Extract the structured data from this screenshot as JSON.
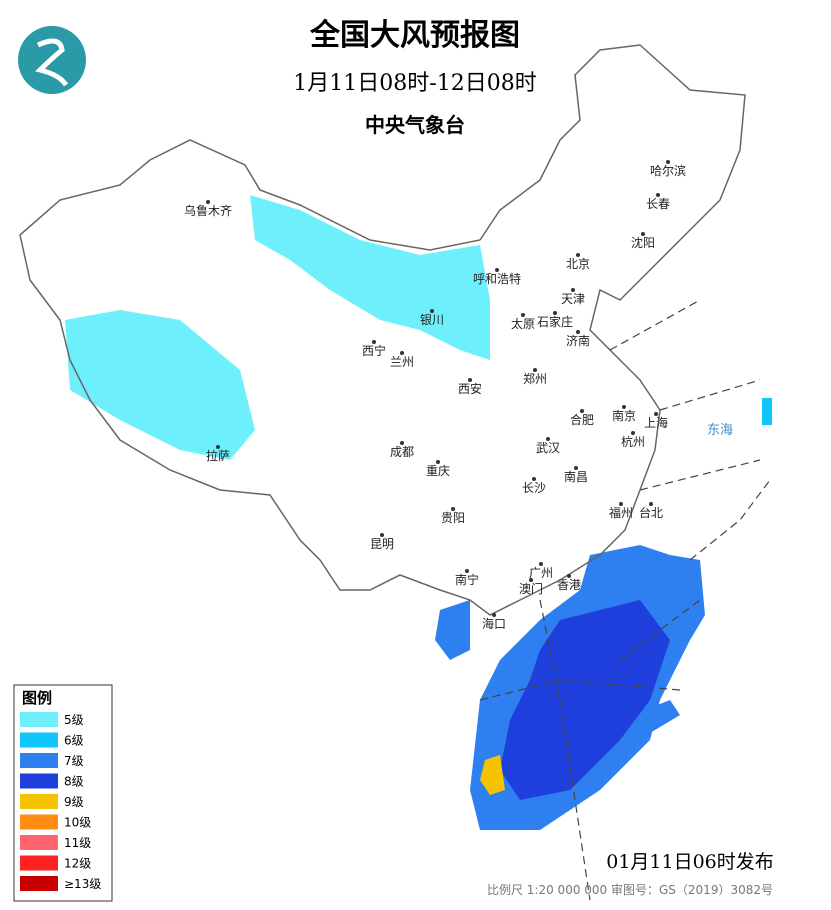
{
  "header": {
    "title": "全国大风预报图",
    "period": "1月11日08时-12日08时",
    "issuer": "中央气象台"
  },
  "cities": [
    "乌鲁木齐",
    "哈尔滨",
    "长春",
    "沈阳",
    "北京",
    "呼和浩特",
    "天津",
    "银川",
    "太原",
    "石家庄",
    "济南",
    "西宁",
    "兰州",
    "郑州",
    "西安",
    "南京",
    "合肥",
    "上海",
    "杭州",
    "成都",
    "武汉",
    "拉萨",
    "重庆",
    "南昌",
    "长沙",
    "福州",
    "台北",
    "贵阳",
    "昆明",
    "南宁",
    "广州",
    "香港",
    "澳门",
    "海口"
  ],
  "seas": [
    "东海"
  ],
  "legend": {
    "title": "图例",
    "items": [
      {
        "label": "5级",
        "color": "#6ef0fc"
      },
      {
        "label": "6级",
        "color": "#10c6fb"
      },
      {
        "label": "7级",
        "color": "#2e7ff0"
      },
      {
        "label": "8级",
        "color": "#1f3fdc"
      },
      {
        "label": "9级",
        "color": "#f5c400"
      },
      {
        "label": "10级",
        "color": "#ff8c10"
      },
      {
        "label": "11级",
        "color": "#ff6470"
      },
      {
        "label": "12级",
        "color": "#ff2020"
      },
      {
        "label": "≥13级",
        "color": "#c80000"
      }
    ]
  },
  "footer": {
    "issued": "01月11日06时发布",
    "scale": "比例尺 1:20 000 000   审图号：GS（2019）3082号"
  }
}
